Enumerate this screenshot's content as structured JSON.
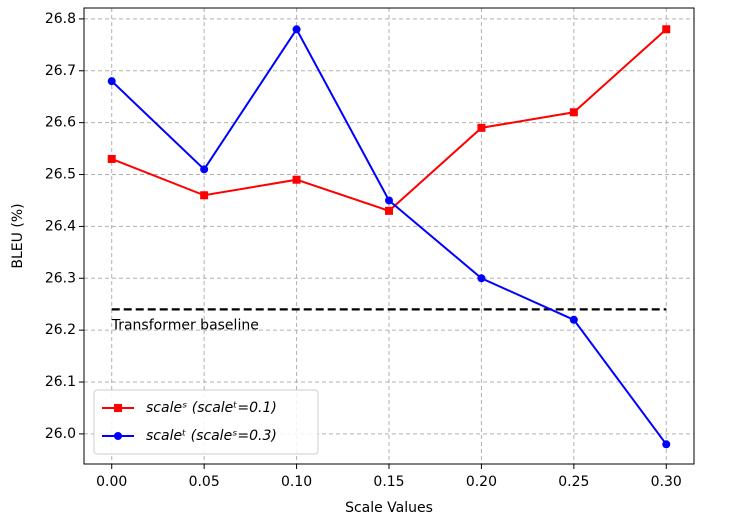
{
  "chart_data": {
    "type": "line",
    "x_label": "Scale Values",
    "y_label": "BLEU (%)",
    "x": [
      0,
      0.05,
      0.1,
      0.15,
      0.2,
      0.25,
      0.3
    ],
    "series": [
      {
        "name": "scaleˢ (scaleᵗ=0.1)",
        "color": "#ff0000",
        "marker": "square",
        "values": [
          26.53,
          26.46,
          26.49,
          26.43,
          26.59,
          26.62,
          26.78
        ]
      },
      {
        "name": "scaleᵗ (scaleˢ=0.3)",
        "color": "#0000ff",
        "marker": "circle",
        "values": [
          26.68,
          26.51,
          26.78,
          26.45,
          26.3,
          26.22,
          25.98
        ]
      }
    ],
    "baseline": {
      "label": "Transformer baseline",
      "value": 26.24,
      "x": [
        0,
        0.3
      ],
      "color": "#000000"
    },
    "xlim": [
      -0.015,
      0.315
    ],
    "ylim": [
      25.942,
      26.821
    ],
    "xticks": [
      {
        "value": 0,
        "label": "0.00"
      },
      {
        "value": 0.05,
        "label": "0.05"
      },
      {
        "value": 0.1,
        "label": "0.10"
      },
      {
        "value": 0.15,
        "label": "0.15"
      },
      {
        "value": 0.2,
        "label": "0.20"
      },
      {
        "value": 0.25,
        "label": "0.25"
      },
      {
        "value": 0.3,
        "label": "0.30"
      }
    ],
    "yticks": [
      {
        "value": 26,
        "label": "26.0"
      },
      26.1,
      26.2,
      26.3,
      26.4,
      26.5,
      26.6,
      26.7,
      26.8
    ],
    "grid": true,
    "legend": "lower left"
  }
}
